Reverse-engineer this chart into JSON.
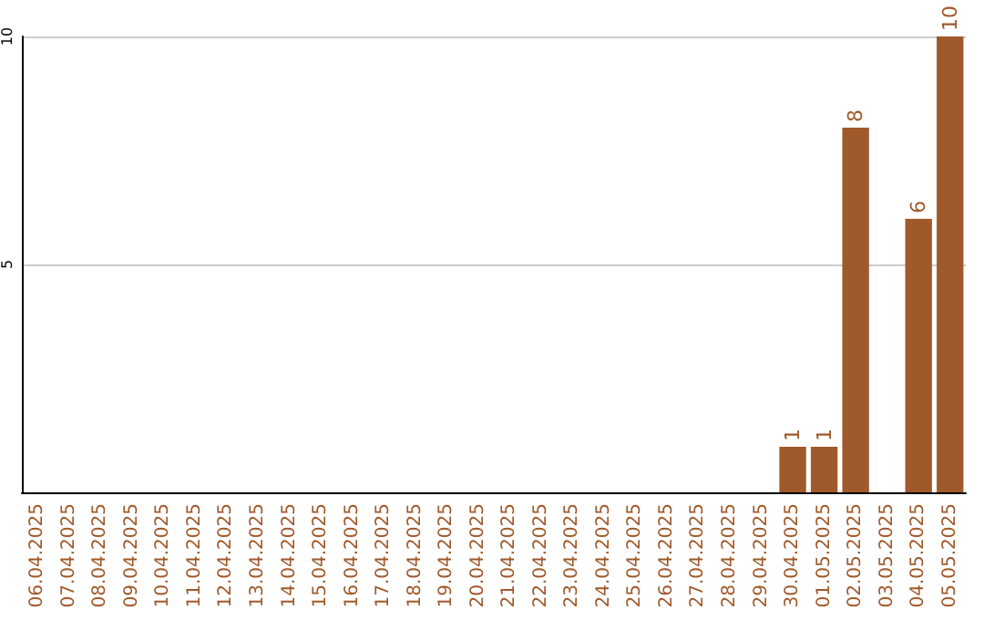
{
  "chart_data": {
    "type": "bar",
    "categories": [
      "06.04.2025",
      "07.04.2025",
      "08.04.2025",
      "09.04.2025",
      "10.04.2025",
      "11.04.2025",
      "12.04.2025",
      "13.04.2025",
      "14.04.2025",
      "15.04.2025",
      "16.04.2025",
      "17.04.2025",
      "18.04.2025",
      "19.04.2025",
      "20.04.2025",
      "21.04.2025",
      "22.04.2025",
      "23.04.2025",
      "24.04.2025",
      "25.04.2025",
      "26.04.2025",
      "27.04.2025",
      "28.04.2025",
      "29.04.2025",
      "30.04.2025",
      "01.05.2025",
      "02.05.2025",
      "03.05.2025",
      "04.05.2025",
      "05.05.2025"
    ],
    "values": [
      0,
      0,
      0,
      0,
      0,
      0,
      0,
      0,
      0,
      0,
      0,
      0,
      0,
      0,
      0,
      0,
      0,
      0,
      0,
      0,
      0,
      0,
      0,
      0,
      1,
      1,
      8,
      0,
      6,
      10
    ],
    "value_labels": [
      null,
      null,
      null,
      null,
      null,
      null,
      null,
      null,
      null,
      null,
      null,
      null,
      null,
      null,
      null,
      null,
      null,
      null,
      null,
      null,
      null,
      null,
      null,
      null,
      "1",
      "1",
      "8",
      null,
      "6",
      "10"
    ],
    "color": "#a0592a",
    "ylim": [
      0,
      10
    ],
    "yticks": [
      5,
      10
    ],
    "grid": "y"
  }
}
